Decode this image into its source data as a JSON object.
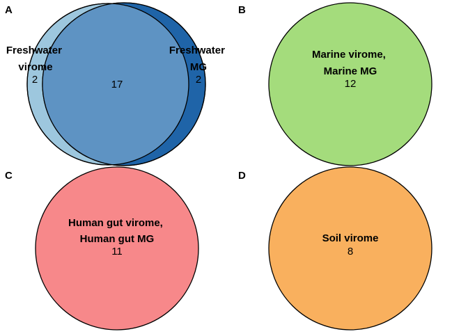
{
  "panels": [
    {
      "letter": "A",
      "sets": [
        {
          "label_lines": [
            "Freshwater",
            "virome"
          ],
          "color": "#9dc7de",
          "count": "2"
        },
        {
          "label_lines": [
            "Freshwater",
            "MG"
          ],
          "color": "#1f64a8",
          "count": "2"
        }
      ],
      "overlap": {
        "count": "17",
        "color": "#5e93c3"
      }
    },
    {
      "letter": "B",
      "sets": [
        {
          "label_lines": [
            "Marine virome,",
            "Marine MG"
          ],
          "color": "#a4dc7c",
          "count": "12"
        }
      ]
    },
    {
      "letter": "C",
      "sets": [
        {
          "label_lines": [
            "Human gut virome,",
            "Human gut MG"
          ],
          "color": "#f7888a",
          "count": "11"
        }
      ]
    },
    {
      "letter": "D",
      "sets": [
        {
          "label_lines": [
            "Soil virome"
          ],
          "color": "#f9b05e",
          "count": "8"
        }
      ]
    }
  ]
}
